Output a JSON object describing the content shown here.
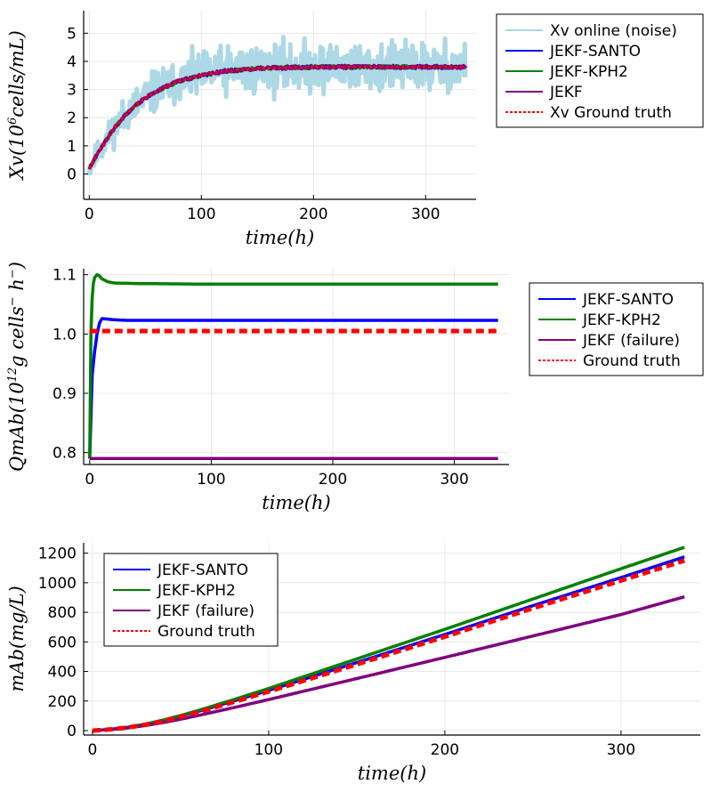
{
  "chart_data": [
    {
      "type": "line",
      "xlabel": "time(h)",
      "ylabel": "Xv(10^6 cells/mL)",
      "ylabel_parts": {
        "pre": "Xv(10",
        "sup": "6",
        "post": "cells/mL)"
      },
      "xlim": [
        -5,
        345
      ],
      "ylim": [
        -0.9,
        5.8
      ],
      "xticks": [
        0,
        100,
        200,
        300
      ],
      "yticks": [
        0,
        1,
        2,
        3,
        4,
        5
      ],
      "grid": true,
      "legend_position": "outside-right",
      "series": [
        {
          "name": "Xv online (noise)",
          "color": "#add8e6",
          "style": "solid",
          "width": 5,
          "kind": "noise",
          "x": [
            0,
            10,
            20,
            30,
            40,
            50,
            60,
            80,
            100,
            120,
            150,
            200,
            250,
            300,
            336
          ],
          "y": [
            0.2,
            0.9,
            1.5,
            2.0,
            2.4,
            2.7,
            2.95,
            3.3,
            3.5,
            3.65,
            3.75,
            3.8,
            3.8,
            3.8,
            3.8
          ],
          "noise_halfwidth": [
            0.6,
            0.7,
            0.8,
            0.9,
            1.0,
            1.05,
            1.1,
            1.15,
            1.2,
            1.25,
            1.3,
            1.3,
            1.3,
            1.3,
            1.3
          ]
        },
        {
          "name": "JEKF-SANTO",
          "color": "#0000ff",
          "style": "solid",
          "width": 3,
          "kind": "wiggle",
          "x": [
            0,
            10,
            20,
            30,
            40,
            50,
            60,
            80,
            100,
            120,
            150,
            200,
            250,
            300,
            336
          ],
          "y": [
            0.2,
            0.9,
            1.5,
            2.0,
            2.4,
            2.7,
            2.95,
            3.3,
            3.5,
            3.65,
            3.75,
            3.8,
            3.8,
            3.8,
            3.8
          ]
        },
        {
          "name": "JEKF-KPH2",
          "color": "#008000",
          "style": "solid",
          "width": 3,
          "kind": "wiggle",
          "x": [
            0,
            10,
            20,
            30,
            40,
            50,
            60,
            80,
            100,
            120,
            150,
            200,
            250,
            300,
            336
          ],
          "y": [
            0.2,
            0.9,
            1.5,
            2.0,
            2.4,
            2.7,
            2.95,
            3.3,
            3.5,
            3.65,
            3.75,
            3.8,
            3.8,
            3.8,
            3.8
          ]
        },
        {
          "name": "JEKF",
          "color": "#800080",
          "style": "solid",
          "width": 3.5,
          "kind": "wiggle",
          "x": [
            0,
            10,
            20,
            30,
            40,
            50,
            60,
            80,
            100,
            120,
            150,
            200,
            250,
            300,
            336
          ],
          "y": [
            0.2,
            0.9,
            1.5,
            2.0,
            2.4,
            2.7,
            2.95,
            3.3,
            3.5,
            3.65,
            3.75,
            3.8,
            3.8,
            3.8,
            3.8
          ]
        },
        {
          "name": "Xv Ground truth",
          "color": "#ff0000",
          "style": "dotted",
          "width": 3,
          "kind": "smooth",
          "x": [
            0,
            10,
            20,
            30,
            40,
            50,
            60,
            80,
            100,
            120,
            150,
            200,
            250,
            300,
            336
          ],
          "y": [
            0.2,
            0.9,
            1.5,
            2.0,
            2.4,
            2.7,
            2.95,
            3.3,
            3.5,
            3.65,
            3.75,
            3.8,
            3.8,
            3.8,
            3.8
          ]
        }
      ]
    },
    {
      "type": "line",
      "xlabel": "time(h)",
      "ylabel": "QmAb(10^12 g cells^- h^-)",
      "ylabel_parts": {
        "pre": "QmAb(10",
        "sup": "12",
        "post": "g cells",
        "sup2": "−",
        "post2": " h",
        "sup3": "−",
        "post3": ")"
      },
      "xlim": [
        -5,
        345
      ],
      "ylim": [
        0.78,
        1.11
      ],
      "xticks": [
        0,
        100,
        200,
        300
      ],
      "yticks": [
        0.8,
        0.9,
        1.0,
        1.1
      ],
      "ytick_labels": [
        "0.8",
        "0.9",
        "1.0",
        "1.1"
      ],
      "grid": true,
      "legend_position": "outside-right",
      "series": [
        {
          "name": "JEKF-SANTO",
          "color": "#0000ff",
          "style": "solid",
          "width": 3.5,
          "x": [
            0,
            2,
            4,
            6,
            8,
            10,
            15,
            20,
            30,
            50,
            336
          ],
          "y": [
            0.79,
            0.93,
            0.97,
            1.0,
            1.018,
            1.026,
            1.025,
            1.024,
            1.023,
            1.023,
            1.023
          ]
        },
        {
          "name": "JEKF-KPH2",
          "color": "#008000",
          "style": "solid",
          "width": 3.5,
          "x": [
            0,
            1,
            2,
            3,
            4,
            6,
            8,
            10,
            15,
            20,
            40,
            100,
            200,
            336
          ],
          "y": [
            0.79,
            1.0,
            1.06,
            1.085,
            1.095,
            1.1,
            1.098,
            1.093,
            1.088,
            1.086,
            1.085,
            1.084,
            1.084,
            1.084
          ]
        },
        {
          "name": "JEKF (failure)",
          "color": "#800080",
          "style": "solid",
          "width": 3.5,
          "x": [
            0,
            336
          ],
          "y": [
            0.79,
            0.79
          ]
        },
        {
          "name": "Ground truth",
          "color": "#ff0000",
          "style": "dashed",
          "width": 5,
          "x": [
            0,
            336
          ],
          "y": [
            1.005,
            1.005
          ]
        }
      ]
    },
    {
      "type": "line",
      "xlabel": "time(h)",
      "ylabel": "mAb(mg/L)",
      "xlim": [
        -5,
        345
      ],
      "ylim": [
        -30,
        1270
      ],
      "xticks": [
        0,
        100,
        200,
        300
      ],
      "yticks": [
        0,
        200,
        400,
        600,
        800,
        1000,
        1200
      ],
      "grid": true,
      "legend_position": "top-left",
      "series": [
        {
          "name": "JEKF-SANTO",
          "color": "#0000ff",
          "style": "solid",
          "width": 3.5,
          "x": [
            0,
            10,
            20,
            30,
            40,
            50,
            60,
            80,
            100,
            150,
            200,
            250,
            300,
            336
          ],
          "y": [
            0,
            8,
            22,
            42,
            68,
            98,
            130,
            200,
            272,
            460,
            650,
            845,
            1035,
            1175
          ]
        },
        {
          "name": "JEKF-KPH2",
          "color": "#008000",
          "style": "solid",
          "width": 3.5,
          "x": [
            0,
            10,
            20,
            30,
            40,
            50,
            60,
            80,
            100,
            150,
            200,
            250,
            300,
            336
          ],
          "y": [
            0,
            9,
            23,
            44,
            71,
            102,
            136,
            209,
            285,
            485,
            685,
            890,
            1095,
            1240
          ]
        },
        {
          "name": "JEKF (failure)",
          "color": "#800080",
          "style": "solid",
          "width": 3.5,
          "x": [
            0,
            10,
            20,
            30,
            40,
            50,
            60,
            80,
            100,
            150,
            200,
            250,
            300,
            336
          ],
          "y": [
            0,
            7,
            18,
            34,
            54,
            77,
            102,
            155,
            210,
            352,
            495,
            640,
            785,
            905
          ]
        },
        {
          "name": "Ground truth",
          "color": "#ff0000",
          "style": "dashed",
          "width": 5,
          "x": [
            0,
            10,
            20,
            30,
            40,
            50,
            60,
            80,
            100,
            150,
            200,
            250,
            300,
            336
          ],
          "y": [
            0,
            8,
            21,
            40,
            65,
            94,
            125,
            193,
            264,
            448,
            635,
            828,
            1015,
            1150
          ]
        }
      ]
    }
  ]
}
